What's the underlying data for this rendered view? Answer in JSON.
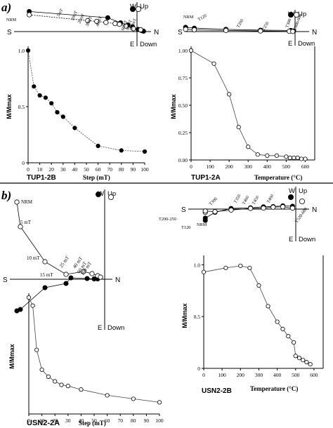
{
  "figure": {
    "panel_a_letter": "a)",
    "panel_b_letter": "b)"
  },
  "chart_data": [
    {
      "id": "tup1_2b_decay",
      "type": "line",
      "sample_label": "TUP1-2B",
      "xlabel": "Step (mT)",
      "ylabel": "M/Mmax",
      "xlim": [
        0,
        100
      ],
      "ylim": [
        0,
        1
      ],
      "xticks": [
        0,
        10,
        20,
        30,
        40,
        50,
        60,
        70,
        80,
        90,
        100
      ],
      "yticks": [
        0,
        0.5,
        1.0
      ],
      "ytick_labels": [
        "0",
        "0.5",
        "1.0"
      ],
      "series": [
        {
          "marker": "filled",
          "x": [
            0,
            5,
            10,
            15,
            20,
            25,
            30,
            40,
            60,
            80,
            100
          ],
          "y": [
            1.0,
            0.68,
            0.6,
            0.58,
            0.53,
            0.45,
            0.41,
            0.31,
            0.15,
            0.11,
            0.1
          ]
        }
      ]
    },
    {
      "id": "tup1_2a_decay",
      "type": "line",
      "sample_label": "TUP1-2A",
      "xlabel": "Temperature (°C)",
      "ylabel": "M/Mmax",
      "xlim": [
        0,
        650
      ],
      "ylim": [
        0,
        1
      ],
      "xticks": [
        0,
        100,
        200,
        300,
        400,
        500,
        600
      ],
      "yticks": [
        0,
        0.25,
        0.5,
        0.75,
        1.0
      ],
      "ytick_labels": [
        "0.00",
        "0.25",
        "0.50",
        "0.75",
        "1.00"
      ],
      "series": [
        {
          "marker": "open",
          "x": [
            0,
            120,
            200,
            250,
            300,
            350,
            400,
            450,
            500,
            520,
            540,
            560,
            580,
            600
          ],
          "y": [
            1.0,
            0.88,
            0.6,
            0.3,
            0.12,
            0.05,
            0.04,
            0.04,
            0.03,
            0.02,
            0.02,
            0.02,
            0.01,
            0.01
          ]
        }
      ]
    },
    {
      "id": "usn2_2a_decay",
      "type": "line",
      "sample_label": "USN2-2A",
      "xlabel": "Step (mT)",
      "ylabel": "M/Mmax",
      "xlim": [
        0,
        100
      ],
      "ylim": [
        0,
        1
      ],
      "xticks": [
        0,
        10,
        20,
        30,
        40,
        50,
        60,
        70,
        80,
        90,
        100
      ],
      "series": [
        {
          "marker": "open",
          "x": [
            0,
            3,
            6,
            10,
            15,
            20,
            25,
            30,
            40,
            60,
            80,
            100
          ],
          "y": [
            1.0,
            0.93,
            0.55,
            0.38,
            0.32,
            0.28,
            0.25,
            0.24,
            0.21,
            0.16,
            0.13,
            0.1
          ]
        }
      ]
    },
    {
      "id": "usn2_2b_decay",
      "type": "line",
      "sample_label": "USN2-2B",
      "xlabel": "Temperature (°C)",
      "ylabel": "M/Mmax",
      "xlim": [
        0,
        650
      ],
      "ylim": [
        0,
        1.05
      ],
      "xticks": [
        0,
        100,
        200,
        300,
        400,
        500,
        600
      ],
      "yticks": [
        0,
        0.5,
        1.0
      ],
      "ytick_labels": [
        "0",
        "0.5",
        "1.0"
      ],
      "series": [
        {
          "marker": "open",
          "x": [
            0,
            120,
            200,
            250,
            300,
            350,
            400,
            430,
            460,
            490,
            500,
            520,
            540,
            560,
            580
          ],
          "y": [
            0.93,
            0.97,
            0.99,
            0.97,
            0.8,
            0.6,
            0.45,
            0.38,
            0.31,
            0.25,
            0.12,
            0.1,
            0.08,
            0.06,
            0.04
          ]
        }
      ]
    },
    {
      "id": "tup1_2b_zijderveld",
      "type": "scatter",
      "axis_labels": {
        "left": "S",
        "right": "N",
        "top_left": "W",
        "top_right": "Up",
        "bottom_left": "E",
        "bottom_right": "Down"
      },
      "step_labels": [
        "NRM",
        "5mT",
        "10mT",
        "20mT",
        "30mT",
        "40mT",
        "60mT",
        "80mT",
        "100mT"
      ],
      "horizontal": [
        [
          -29.5,
          5.5
        ],
        [
          -8,
          3.8
        ],
        [
          -4.5,
          2.4
        ],
        [
          -2.5,
          1.8
        ],
        [
          -1.2,
          1.3
        ],
        [
          0.3,
          0.6
        ],
        [
          1.2,
          0.3
        ],
        [
          1.5,
          0.2
        ],
        [
          1.8,
          0.1
        ]
      ],
      "vertical": [
        [
          -29.5,
          4.6
        ],
        [
          -13.5,
          3.0
        ],
        [
          -11,
          2.8
        ],
        [
          -8.5,
          2.5
        ],
        [
          -6,
          2.2
        ],
        [
          -4.8,
          2.0
        ],
        [
          -3,
          1.5
        ],
        [
          -1,
          0.8
        ],
        [
          1,
          0.5
        ]
      ]
    },
    {
      "id": "tup1_2a_zijderveld",
      "type": "scatter",
      "axis_labels": {
        "left": "S",
        "right": "N",
        "top_left": "W",
        "top_right": "Up",
        "bottom_left": "E",
        "bottom_right": "Down"
      },
      "step_labels": [
        "NRM",
        "T120",
        "T200",
        "T250",
        "T300",
        "T500-600"
      ],
      "horizontal": [
        [
          -38,
          1.5
        ],
        [
          -35,
          1.2
        ],
        [
          -24,
          0.8
        ],
        [
          -12,
          0.5
        ],
        [
          -1.5,
          0.4
        ],
        [
          -0.5,
          0.2
        ]
      ],
      "vertical": [
        [
          -38,
          0.8
        ],
        [
          -35,
          0.6
        ],
        [
          -24,
          0.4
        ],
        [
          -12,
          0.2
        ],
        [
          -2,
          0.1
        ],
        [
          -0.8,
          0.05
        ]
      ]
    },
    {
      "id": "usn2_2a_zijderveld",
      "type": "scatter",
      "axis_labels": {
        "left": "S",
        "right": "N",
        "top_left": "W",
        "top_right": "Up",
        "bottom_left": "E",
        "bottom_right": "Down"
      },
      "step_labels": [
        "NRM",
        "5 mT",
        "10 mT",
        "15 mT",
        "25 mT",
        "40 mT",
        "60 mT",
        "100 mT"
      ],
      "horizontal": [
        [
          -12.5,
          -4.5
        ],
        [
          -12,
          -4.3
        ],
        [
          -8.5,
          -1.2
        ],
        [
          -5.5,
          -0.6
        ],
        [
          -4.8,
          0.2
        ],
        [
          -2.5,
          0.1
        ],
        [
          -1.5,
          0.05
        ],
        [
          -1.0,
          0.05
        ]
      ],
      "vertical": [
        [
          -12.5,
          11
        ],
        [
          -12,
          7.5
        ],
        [
          -8.5,
          2.5
        ],
        [
          -5.5,
          0.7
        ],
        [
          -3,
          1.1
        ],
        [
          -1.8,
          0.8
        ],
        [
          -1.0,
          0.5
        ],
        [
          -0.6,
          0.3
        ]
      ]
    },
    {
      "id": "usn2_2b_zijderveld",
      "type": "scatter",
      "axis_labels": {
        "left": "S",
        "right": "N",
        "top_left": "W",
        "top_right": "Up",
        "bottom_left": "E",
        "bottom_right": "Down"
      },
      "step_labels": [
        "NRM",
        "T120",
        "T200-250",
        "T300",
        "T350",
        "T400",
        "T450",
        "T490",
        "T520-600"
      ],
      "horizontal": [
        [
          -28,
          -3.5
        ],
        [
          -28,
          -2.8
        ],
        [
          -25,
          -1.0
        ],
        [
          -20,
          0.2
        ],
        [
          -14,
          0.4
        ],
        [
          -10,
          0.7
        ],
        [
          -7,
          0.8
        ],
        [
          -4,
          1.0
        ],
        [
          -1,
          0.9
        ]
      ],
      "vertical": [
        [
          -28,
          -1.0
        ],
        [
          -28,
          -0.6
        ],
        [
          -25,
          -0.8
        ],
        [
          -20,
          -0.3
        ],
        [
          -14,
          0.2
        ],
        [
          -10,
          0.3
        ],
        [
          -7,
          0.6
        ],
        [
          -4,
          0.7
        ],
        [
          -1,
          0.3
        ]
      ]
    }
  ]
}
